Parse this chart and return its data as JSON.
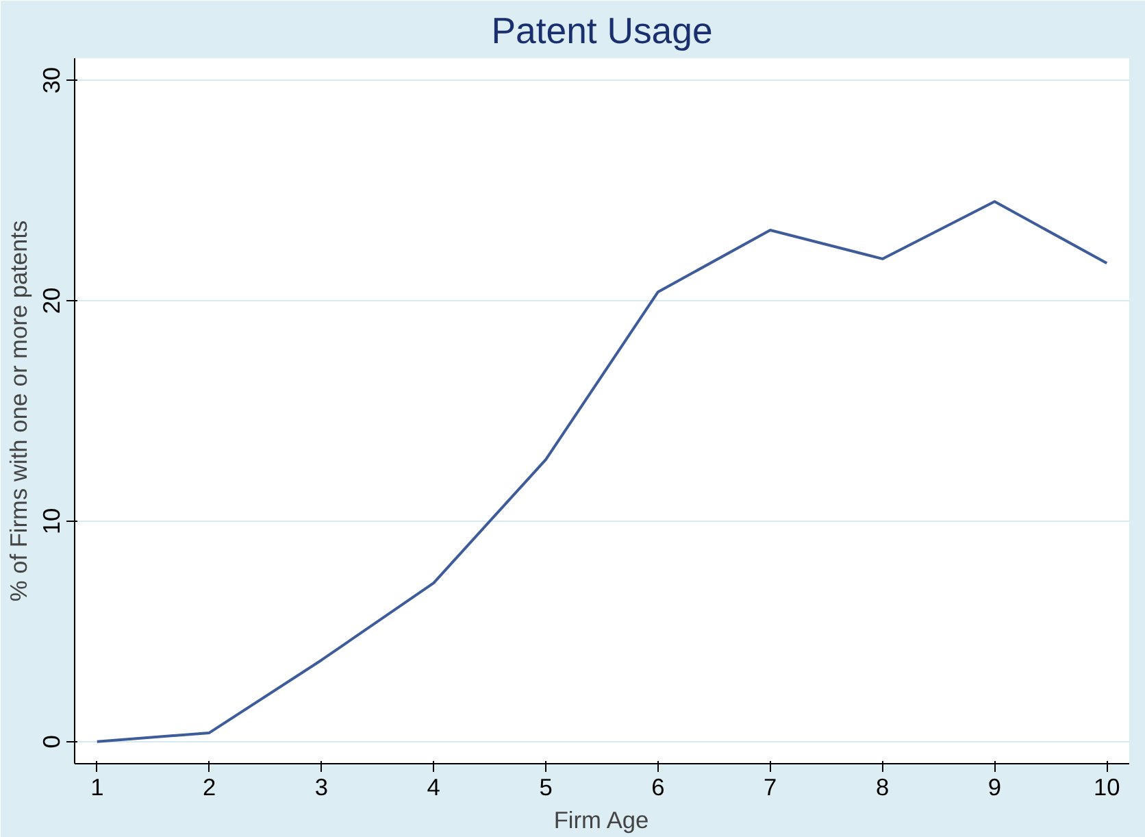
{
  "chart_data": {
    "type": "line",
    "title": "Patent Usage",
    "xlabel": "Firm Age",
    "ylabel": "% of Firms with one or more patents",
    "x": [
      1,
      2,
      3,
      4,
      5,
      6,
      7,
      8,
      9,
      10
    ],
    "series": [
      {
        "color": "#3e5b9a",
        "values": [
          0,
          0.4,
          3.7,
          7.2,
          12.8,
          20.4,
          23.2,
          21.9,
          24.5,
          21.7
        ]
      }
    ],
    "xlim": [
      0.8,
      10.2
    ],
    "ylim": [
      -1,
      31
    ],
    "xticks": [
      1,
      2,
      3,
      4,
      5,
      6,
      7,
      8,
      9,
      10
    ],
    "yticks": [
      0,
      10,
      20,
      30
    ],
    "grid": "y",
    "marker": "none",
    "line_style": "solid"
  }
}
